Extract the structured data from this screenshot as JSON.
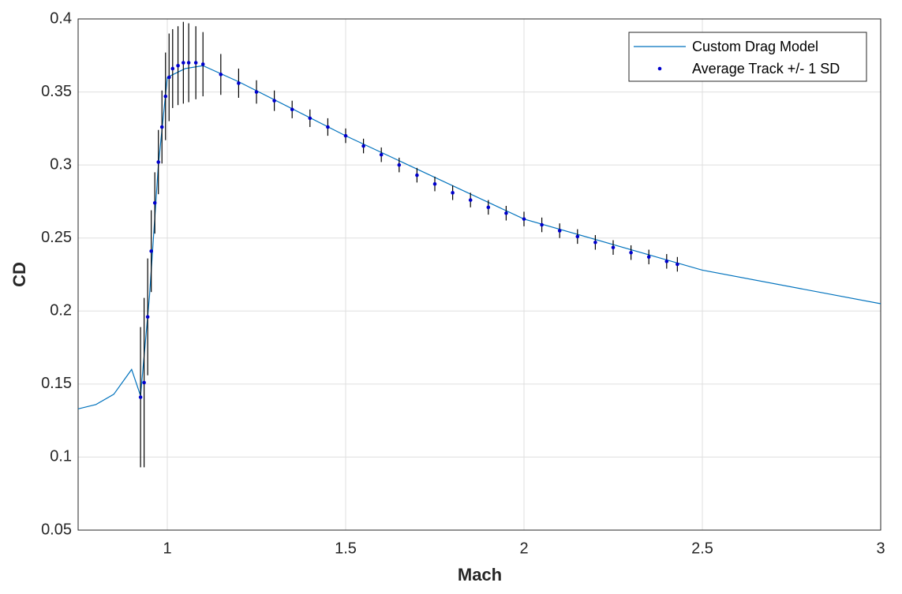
{
  "chart_data": {
    "type": "line",
    "x_label": "Mach",
    "y_label": "CD",
    "xlim": [
      0.75,
      3
    ],
    "ylim": [
      0.05,
      0.4
    ],
    "xticks": [
      1,
      1.5,
      2,
      2.5,
      3
    ],
    "yticks": [
      0.05,
      0.1,
      0.15,
      0.2,
      0.25,
      0.3,
      0.35,
      0.4
    ],
    "grid": true,
    "legend": "northeast",
    "series": [
      {
        "name": "Custom Drag Model",
        "color": "#0072bd",
        "style": "line",
        "x": [
          0.75,
          0.8,
          0.85,
          0.9,
          0.925,
          0.95,
          0.975,
          1.0,
          1.05,
          1.1,
          1.2,
          1.5,
          2.0,
          2.5,
          3.0
        ],
        "values": [
          0.133,
          0.136,
          0.143,
          0.16,
          0.142,
          0.21,
          0.3,
          0.36,
          0.366,
          0.368,
          0.357,
          0.32,
          0.263,
          0.228,
          0.205
        ]
      },
      {
        "name": "Average Track +/- 1 SD",
        "color": "#0000cc",
        "error_color": "#000000",
        "style": "errorbar",
        "x": [
          0.925,
          0.935,
          0.945,
          0.955,
          0.965,
          0.975,
          0.985,
          0.995,
          1.005,
          1.015,
          1.03,
          1.045,
          1.06,
          1.08,
          1.1,
          1.15,
          1.2,
          1.25,
          1.3,
          1.35,
          1.4,
          1.45,
          1.5,
          1.55,
          1.6,
          1.65,
          1.7,
          1.75,
          1.8,
          1.85,
          1.9,
          1.95,
          2.0,
          2.05,
          2.1,
          2.15,
          2.2,
          2.25,
          2.3,
          2.35,
          2.4,
          2.43
        ],
        "values": [
          0.141,
          0.151,
          0.196,
          0.241,
          0.274,
          0.302,
          0.326,
          0.347,
          0.36,
          0.366,
          0.368,
          0.37,
          0.37,
          0.37,
          0.369,
          0.362,
          0.356,
          0.35,
          0.344,
          0.338,
          0.332,
          0.326,
          0.32,
          0.313,
          0.307,
          0.3,
          0.293,
          0.287,
          0.281,
          0.276,
          0.271,
          0.267,
          0.263,
          0.259,
          0.255,
          0.251,
          0.247,
          0.2435,
          0.24,
          0.237,
          0.234,
          0.232
        ],
        "errors": [
          0.048,
          0.058,
          0.04,
          0.028,
          0.021,
          0.022,
          0.025,
          0.03,
          0.03,
          0.027,
          0.027,
          0.028,
          0.027,
          0.025,
          0.022,
          0.014,
          0.01,
          0.008,
          0.007,
          0.006,
          0.006,
          0.006,
          0.005,
          0.005,
          0.005,
          0.005,
          0.005,
          0.005,
          0.005,
          0.005,
          0.005,
          0.005,
          0.005,
          0.005,
          0.005,
          0.005,
          0.005,
          0.005,
          0.005,
          0.005,
          0.005,
          0.005
        ]
      }
    ]
  }
}
